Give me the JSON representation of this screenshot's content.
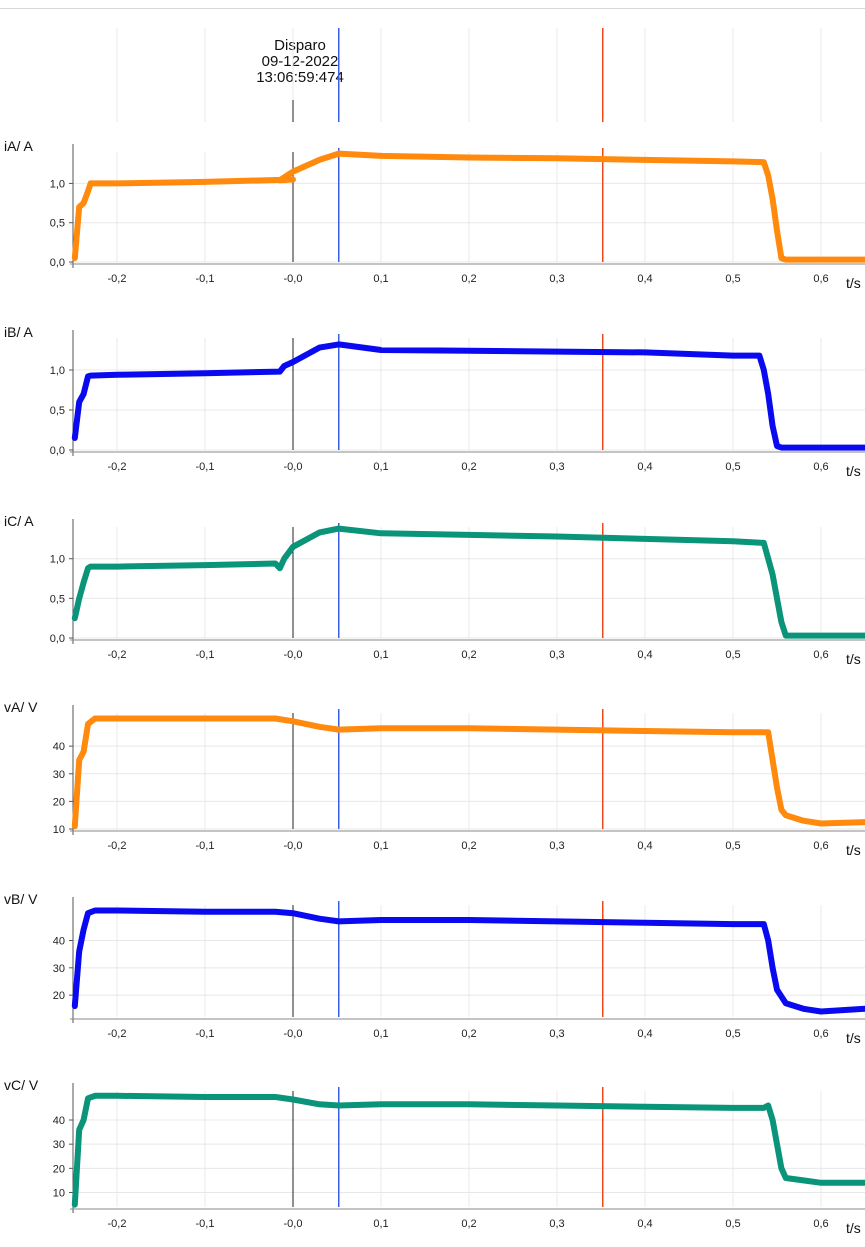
{
  "trigger": {
    "label": "Disparo",
    "date": "09-12-2022",
    "time": "13:06:59:474"
  },
  "colors": {
    "phase_a": "#ff8a0d",
    "phase_b": "#0a0af0",
    "phase_c": "#0a9479",
    "cursor_blue": "#3a5ee8",
    "cursor_red": "#f04818",
    "trigger_line": "#222222",
    "grid": "#e8e8e8"
  },
  "cursors": {
    "trigger_t": 0.0,
    "blue_t": 0.052,
    "red_t": 0.352
  },
  "chart_data": [
    {
      "type": "line",
      "ylabel": "iA/ A",
      "xlabel": "t/s",
      "color": "phase_a",
      "xlim": [
        -0.25,
        0.65
      ],
      "ylim": [
        0.0,
        1.4
      ],
      "xticks": [
        "-0,2",
        "-0,1",
        "-0,0",
        "0,1",
        "0,2",
        "0,3",
        "0,4",
        "0,5",
        "0,6"
      ],
      "yticks": [
        "0,0",
        "0,5",
        "1,0"
      ],
      "yticks_values": [
        0.0,
        0.5,
        1.0
      ],
      "x": [
        -0.248,
        -0.243,
        -0.238,
        -0.233,
        -0.23,
        -0.2,
        -0.1,
        0.0,
        -0.015,
        0.0,
        0.03,
        0.052,
        0.1,
        0.2,
        0.3,
        0.4,
        0.5,
        0.535,
        0.54,
        0.545,
        0.55,
        0.555,
        0.56,
        0.6,
        0.65
      ],
      "y": [
        0.05,
        0.7,
        0.75,
        0.9,
        1.0,
        1.0,
        1.02,
        1.05,
        1.04,
        1.15,
        1.3,
        1.38,
        1.35,
        1.33,
        1.32,
        1.3,
        1.28,
        1.27,
        1.1,
        0.8,
        0.4,
        0.05,
        0.03,
        0.03,
        0.03
      ]
    },
    {
      "type": "line",
      "ylabel": "iB/ A",
      "xlabel": "t/s",
      "color": "phase_b",
      "xlim": [
        -0.25,
        0.65
      ],
      "ylim": [
        0.0,
        1.4
      ],
      "xticks": [
        "-0,2",
        "-0,1",
        "-0,0",
        "0,1",
        "0,2",
        "0,3",
        "0,4",
        "0,5",
        "0,6"
      ],
      "yticks": [
        "0,0",
        "0,5",
        "1,0"
      ],
      "yticks_values": [
        0.0,
        0.5,
        1.0
      ],
      "x": [
        -0.248,
        -0.243,
        -0.238,
        -0.233,
        -0.23,
        -0.2,
        -0.1,
        -0.015,
        -0.01,
        0.0,
        0.03,
        0.052,
        0.1,
        0.2,
        0.3,
        0.4,
        0.5,
        0.53,
        0.535,
        0.54,
        0.545,
        0.55,
        0.555,
        0.6,
        0.65
      ],
      "y": [
        0.15,
        0.6,
        0.7,
        0.92,
        0.93,
        0.94,
        0.96,
        0.98,
        1.05,
        1.1,
        1.28,
        1.32,
        1.25,
        1.24,
        1.23,
        1.22,
        1.18,
        1.18,
        1.0,
        0.7,
        0.3,
        0.05,
        0.03,
        0.03,
        0.03
      ]
    },
    {
      "type": "line",
      "ylabel": "iC/ A",
      "xlabel": "t/s",
      "color": "phase_c",
      "xlim": [
        -0.25,
        0.65
      ],
      "ylim": [
        0.0,
        1.4
      ],
      "xticks": [
        "-0,2",
        "-0,1",
        "-0,0",
        "0,1",
        "0,2",
        "0,3",
        "0,4",
        "0,5",
        "0,6"
      ],
      "yticks": [
        "0,0",
        "0,5",
        "1,0"
      ],
      "yticks_values": [
        0.0,
        0.5,
        1.0
      ],
      "x": [
        -0.248,
        -0.243,
        -0.238,
        -0.233,
        -0.23,
        -0.2,
        -0.1,
        -0.02,
        -0.015,
        -0.01,
        0.0,
        0.03,
        0.052,
        0.1,
        0.2,
        0.3,
        0.4,
        0.5,
        0.535,
        0.54,
        0.545,
        0.55,
        0.555,
        0.56,
        0.6,
        0.65
      ],
      "y": [
        0.25,
        0.5,
        0.7,
        0.88,
        0.9,
        0.9,
        0.92,
        0.94,
        0.88,
        1.0,
        1.15,
        1.33,
        1.38,
        1.32,
        1.3,
        1.28,
        1.25,
        1.22,
        1.2,
        1.0,
        0.8,
        0.5,
        0.2,
        0.03,
        0.03,
        0.03
      ]
    },
    {
      "type": "line",
      "ylabel": "vA/ V",
      "xlabel": "t/s",
      "color": "phase_a",
      "xlim": [
        -0.25,
        0.65
      ],
      "ylim": [
        10,
        52
      ],
      "xticks": [
        "-0,2",
        "-0,1",
        "-0,0",
        "0,1",
        "0,2",
        "0,3",
        "0,4",
        "0,5",
        "0,6"
      ],
      "yticks": [
        "10",
        "20",
        "30",
        "40"
      ],
      "yticks_values": [
        10,
        20,
        30,
        40
      ],
      "x": [
        -0.248,
        -0.243,
        -0.238,
        -0.233,
        -0.225,
        -0.2,
        -0.1,
        -0.02,
        0.0,
        0.03,
        0.052,
        0.1,
        0.2,
        0.3,
        0.4,
        0.5,
        0.54,
        0.545,
        0.55,
        0.555,
        0.56,
        0.58,
        0.6,
        0.65
      ],
      "y": [
        11,
        35,
        38,
        48,
        50,
        50,
        50,
        50,
        49,
        47,
        46,
        46.5,
        46.5,
        46,
        45.5,
        45,
        45,
        35,
        25,
        17,
        15,
        13,
        12,
        12.5
      ]
    },
    {
      "type": "line",
      "ylabel": "vB/ V",
      "xlabel": "t/s",
      "color": "phase_b",
      "xlim": [
        -0.25,
        0.65
      ],
      "ylim": [
        12,
        53
      ],
      "xticks": [
        "-0,2",
        "-0,1",
        "-0,0",
        "0,1",
        "0,2",
        "0,3",
        "0,4",
        "0,5",
        "0,6"
      ],
      "yticks": [
        "20",
        "30",
        "40"
      ],
      "yticks_values": [
        20,
        30,
        40
      ],
      "x": [
        -0.248,
        -0.243,
        -0.238,
        -0.233,
        -0.225,
        -0.2,
        -0.1,
        -0.02,
        0.0,
        0.03,
        0.052,
        0.1,
        0.2,
        0.3,
        0.4,
        0.5,
        0.535,
        0.54,
        0.545,
        0.55,
        0.56,
        0.58,
        0.6,
        0.65
      ],
      "y": [
        16,
        36,
        44,
        50,
        51,
        51,
        50.5,
        50.5,
        50,
        48,
        47,
        47.5,
        47.5,
        47,
        46.5,
        46,
        46,
        40,
        30,
        22,
        17,
        15,
        14,
        15
      ]
    },
    {
      "type": "line",
      "ylabel": "vC/ V",
      "xlabel": "t/s",
      "color": "phase_c",
      "xlim": [
        -0.25,
        0.65
      ],
      "ylim": [
        4,
        52
      ],
      "xticks": [
        "-0,2",
        "-0,1",
        "-0,0",
        "0,1",
        "0,2",
        "0,3",
        "0,4",
        "0,5",
        "0,6"
      ],
      "yticks": [
        "10",
        "20",
        "30",
        "40"
      ],
      "yticks_values": [
        10,
        20,
        30,
        40
      ],
      "x": [
        -0.248,
        -0.243,
        -0.238,
        -0.233,
        -0.225,
        -0.2,
        -0.1,
        -0.02,
        0.0,
        0.03,
        0.052,
        0.1,
        0.2,
        0.3,
        0.4,
        0.5,
        0.535,
        0.54,
        0.545,
        0.55,
        0.555,
        0.56,
        0.58,
        0.6,
        0.65
      ],
      "y": [
        5,
        36,
        40,
        49,
        50,
        50,
        49.5,
        49.5,
        48.5,
        46.5,
        46,
        46.5,
        46.5,
        46,
        45.5,
        45,
        45,
        46,
        40,
        30,
        20,
        16,
        15,
        14,
        14
      ]
    }
  ]
}
